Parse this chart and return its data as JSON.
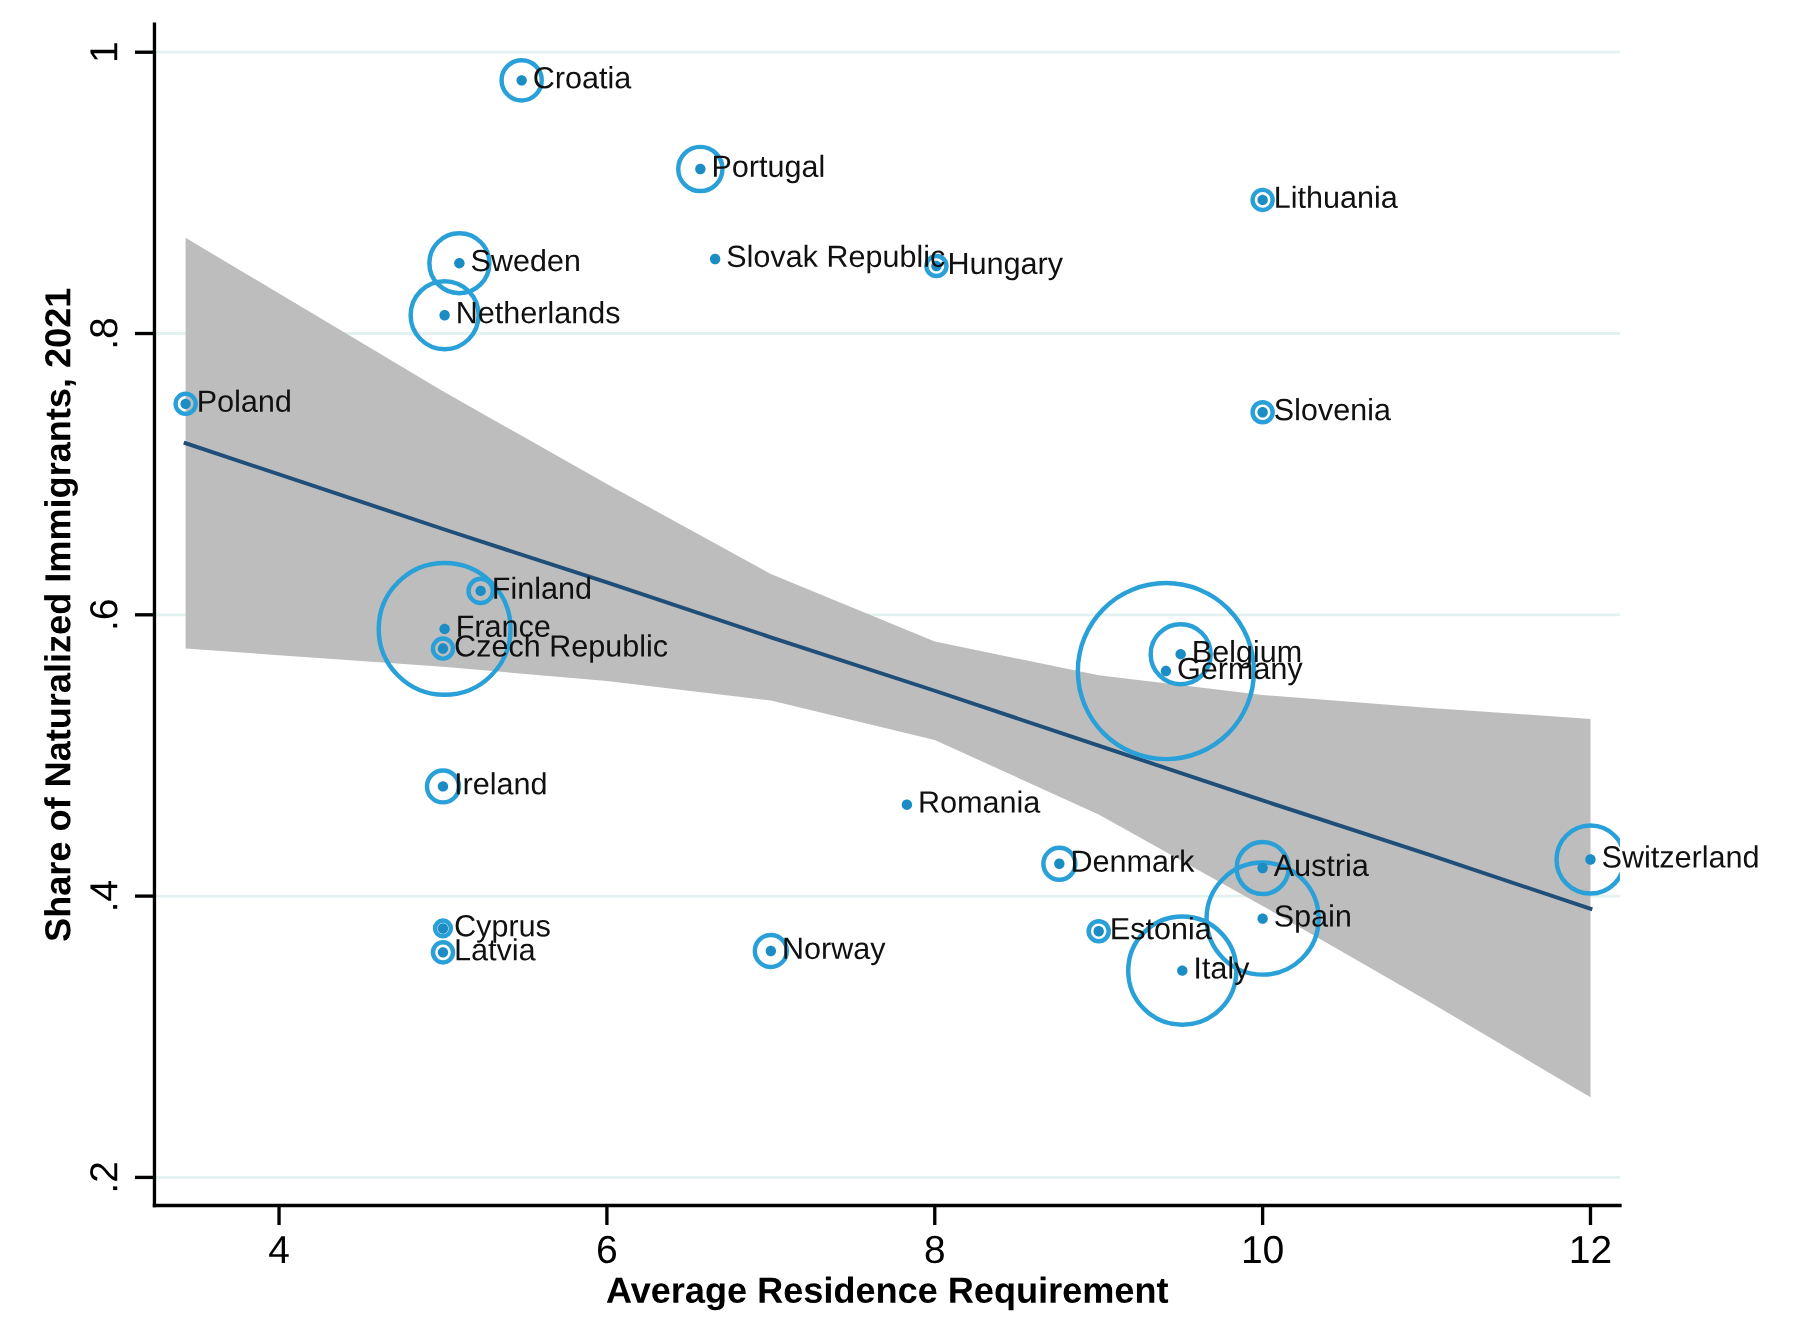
{
  "chart_data": {
    "type": "bubble",
    "xlabel": "Average Residence Requirement",
    "ylabel": "Share of Naturalized Immigrants, 2021",
    "xlim": [
      3.24,
      12.18
    ],
    "ylim": [
      0.18,
      1.02
    ],
    "xticks": [
      4,
      6,
      8,
      10,
      12
    ],
    "yticks": [
      {
        "value": 0.2,
        "label": ".2"
      },
      {
        "value": 0.4,
        "label": ".4"
      },
      {
        "value": 0.6,
        "label": ".6"
      },
      {
        "value": 0.8,
        "label": ".8"
      },
      {
        "value": 1,
        "label": "1"
      }
    ],
    "grid": "y",
    "series": [
      {
        "type": "scatter",
        "color": "#1b8cc4",
        "x": [
          5.48,
          6.57,
          5.1,
          5.01,
          6.66,
          8.01,
          10,
          10,
          3.43,
          5.23,
          5.01,
          5,
          5,
          7.83,
          5,
          5,
          7.0,
          9.5,
          9.41,
          8.76,
          10,
          10,
          9.0,
          9.51,
          12
        ],
        "values": [
          0.98,
          0.917,
          0.85,
          0.813,
          0.853,
          0.848,
          0.895,
          0.744,
          0.75,
          0.617,
          0.59,
          0.576,
          0.478,
          0.465,
          0.377,
          0.36,
          0.361,
          0.572,
          0.56,
          0.423,
          0.42,
          0.384,
          0.375,
          0.347,
          0.426
        ]
      },
      {
        "color": "#2aa0d8",
        "x": [
          5.48,
          6.57,
          5.1,
          5.01,
          8.01,
          10,
          10,
          3.43,
          5.23,
          5.01,
          5,
          5,
          5,
          5,
          7.0,
          9.5,
          9.41,
          8.76,
          10,
          10,
          9.0,
          9.51,
          12
        ],
        "values": [
          0.98,
          0.917,
          0.85,
          0.813,
          0.848,
          0.895,
          0.744,
          0.75,
          0.617,
          0.59,
          0.576,
          0.478,
          0.377,
          0.36,
          0.361,
          0.572,
          0.56,
          0.423,
          0.42,
          0.384,
          0.375,
          0.347,
          0.426
        ],
        "sizes": [
          0.052,
          0.063,
          0.116,
          0.149,
          0.013,
          0.013,
          0.013,
          0.013,
          0.019,
          0.56,
          0.013,
          0.033,
          0.008,
          0.013,
          0.033,
          0.116,
          1,
          0.033,
          0.087,
          0.405,
          0.013,
          0.377,
          0.149
        ]
      },
      {
        "type": "line",
        "color": "#1f4e79",
        "x": [
          3.43,
          5,
          6,
          7,
          8,
          9,
          10,
          11,
          12
        ],
        "values": [
          0.722,
          0.661,
          0.623,
          0.584,
          0.546,
          0.507,
          0.468,
          0.43,
          0.391
        ],
        "lower": [
          0.576,
          0.563,
          0.553,
          0.539,
          0.511,
          0.458,
          0.393,
          0.326,
          0.257
        ],
        "upper": [
          0.868,
          0.759,
          0.693,
          0.629,
          0.581,
          0.557,
          0.543,
          0.534,
          0.526
        ]
      }
    ],
    "annotations": [
      {
        "text": "Croatia",
        "x": 5.48,
        "y": 0.98
      },
      {
        "text": "Portugal",
        "x": 6.57,
        "y": 0.917
      },
      {
        "text": "Sweden",
        "x": 5.1,
        "y": 0.85
      },
      {
        "text": "Netherlands",
        "x": 5.01,
        "y": 0.813
      },
      {
        "text": "Slovak Republic",
        "x": 6.66,
        "y": 0.853
      },
      {
        "text": "Hungary",
        "x": 8.01,
        "y": 0.848
      },
      {
        "text": "Lithuania",
        "x": 10,
        "y": 0.895
      },
      {
        "text": "Slovenia",
        "x": 10,
        "y": 0.744
      },
      {
        "text": "Poland",
        "x": 3.43,
        "y": 0.75
      },
      {
        "text": "Finland",
        "x": 5.23,
        "y": 0.617
      },
      {
        "text": "France",
        "x": 5.01,
        "y": 0.59
      },
      {
        "text": "Czech Republic",
        "x": 5,
        "y": 0.576
      },
      {
        "text": "Ireland",
        "x": 5,
        "y": 0.478
      },
      {
        "text": "Romania",
        "x": 7.83,
        "y": 0.465
      },
      {
        "text": "Cyprus",
        "x": 5,
        "y": 0.377
      },
      {
        "text": "Latvia",
        "x": 5,
        "y": 0.36
      },
      {
        "text": "Norway",
        "x": 7.0,
        "y": 0.361
      },
      {
        "text": "Belgium",
        "x": 9.5,
        "y": 0.572
      },
      {
        "text": "Germany",
        "x": 9.41,
        "y": 0.56
      },
      {
        "text": "Denmark",
        "x": 8.76,
        "y": 0.423
      },
      {
        "text": "Austria",
        "x": 10,
        "y": 0.42
      },
      {
        "text": "Spain",
        "x": 10,
        "y": 0.384
      },
      {
        "text": "Estonia",
        "x": 9.0,
        "y": 0.375
      },
      {
        "text": "Italy",
        "x": 9.51,
        "y": 0.347
      },
      {
        "text": "Switzerland",
        "x": 12,
        "y": 0.426
      }
    ]
  }
}
